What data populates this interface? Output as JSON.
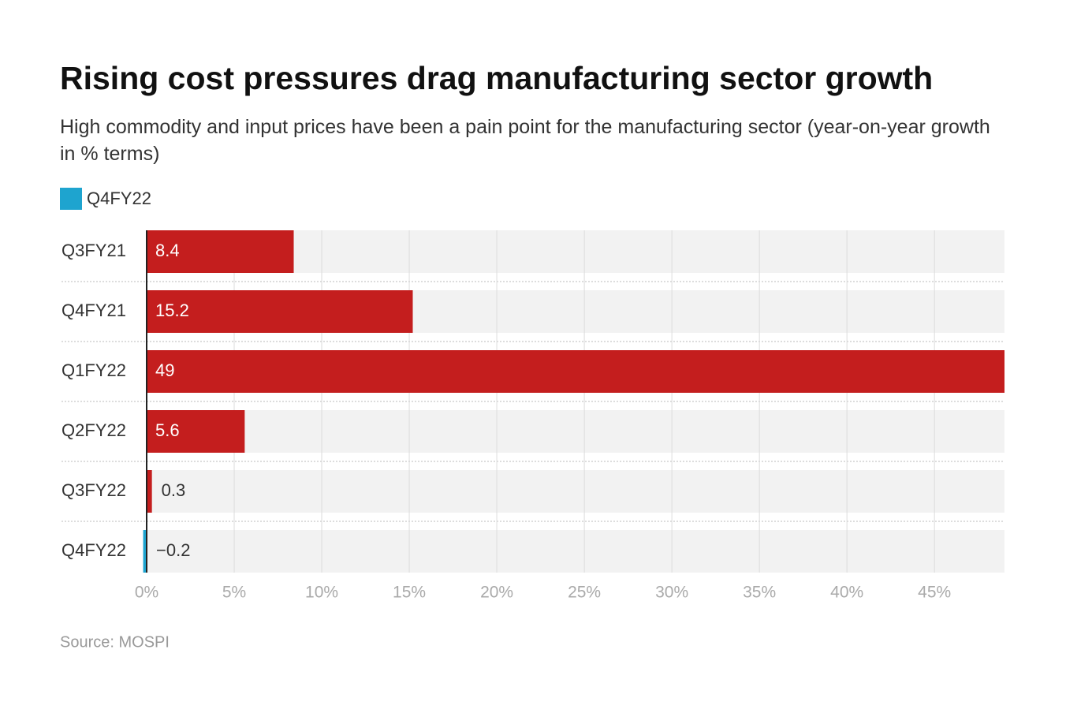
{
  "chart_data": {
    "type": "bar",
    "title": "Rising cost pressures drag manufacturing sector growth",
    "subtitle": "High commodity and input prices have been a pain point for the manufacturing sector (year-on-year growth in % terms)",
    "legend": [
      {
        "name": "Q4FY22",
        "color": "#1ea4cf"
      }
    ],
    "categories": [
      "Q3FY21",
      "Q4FY21",
      "Q1FY22",
      "Q2FY22",
      "Q3FY22",
      "Q4FY22"
    ],
    "values": [
      8.4,
      15.2,
      49,
      5.6,
      0.3,
      -0.2
    ],
    "value_labels": [
      "8.4",
      "15.2",
      "49",
      "5.6",
      "0.3",
      "−0.2"
    ],
    "colors": [
      "#c41e1e",
      "#c41e1e",
      "#c41e1e",
      "#c41e1e",
      "#c41e1e",
      "#1ea4cf"
    ],
    "xlim": [
      0,
      49
    ],
    "xticks": [
      {
        "value": 0,
        "label": "0%"
      },
      {
        "value": 5,
        "label": "5%"
      },
      {
        "value": 10,
        "label": "10%"
      },
      {
        "value": 15,
        "label": "15%"
      },
      {
        "value": 20,
        "label": "20%"
      },
      {
        "value": 25,
        "label": "25%"
      },
      {
        "value": 30,
        "label": "30%"
      },
      {
        "value": 35,
        "label": "35%"
      },
      {
        "value": 40,
        "label": "40%"
      },
      {
        "value": 45,
        "label": "45%"
      }
    ],
    "grid": true,
    "source": "Source: MOSPI"
  }
}
